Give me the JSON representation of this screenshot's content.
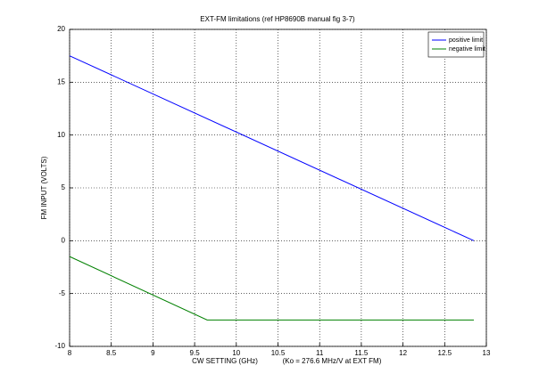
{
  "chart_data": {
    "type": "line",
    "title": "EXT-FM limitations (ref HP8690B manual fig 3-7)",
    "xlabel": "CW SETTING (GHz)",
    "annotation": "(Ko = 276.6 MHz/V at EXT FM)",
    "ylabel": "FM INPUT (VOLTS)",
    "series": [
      {
        "name": "positive limit",
        "color": "#0000ff",
        "x": [
          8,
          12.85
        ],
        "values": [
          17.5,
          0
        ]
      },
      {
        "name": "negative limit",
        "color": "#008000",
        "x": [
          8,
          9.65,
          12.85
        ],
        "values": [
          -1.5,
          -7.5,
          -7.5
        ]
      }
    ],
    "xlim": [
      8,
      13
    ],
    "xticks": [
      8,
      8.5,
      9,
      9.5,
      10,
      10.5,
      11,
      11.5,
      12,
      12.5,
      13
    ],
    "ylim": [
      -10,
      20
    ],
    "yticks": [
      -10,
      -5,
      0,
      5,
      10,
      15,
      20
    ],
    "grid": true,
    "legend": "upper right"
  }
}
